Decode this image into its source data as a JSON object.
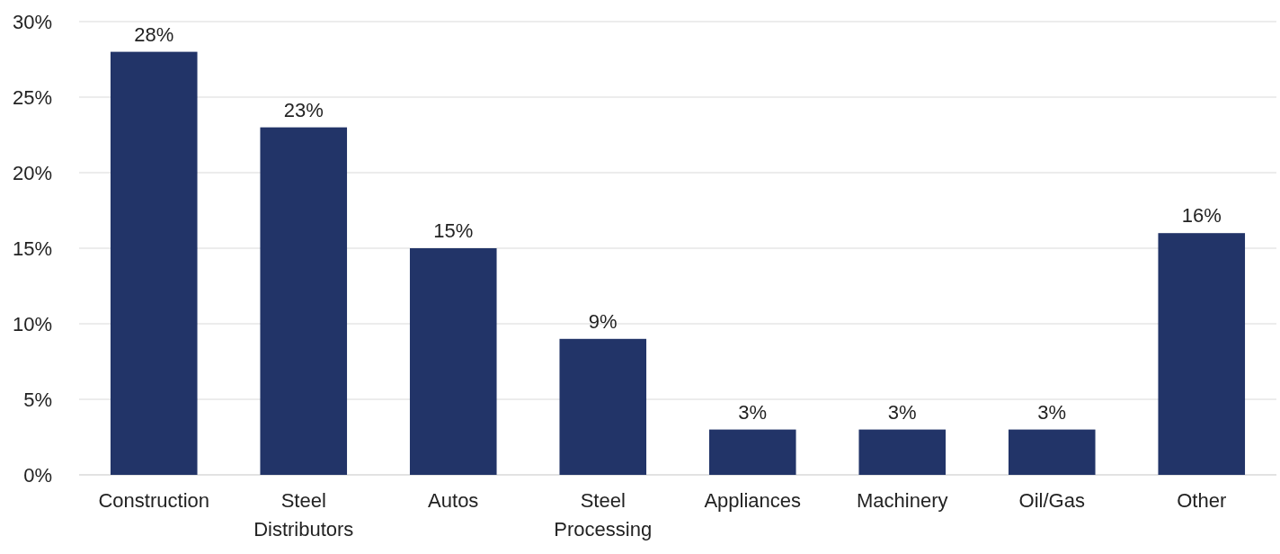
{
  "chart_data": {
    "type": "bar",
    "categories": [
      "Construction",
      "Steel Distributors",
      "Autos",
      "Steel Processing",
      "Appliances",
      "Machinery",
      "Oil/Gas",
      "Other"
    ],
    "values": [
      28,
      23,
      15,
      9,
      3,
      3,
      3,
      16
    ],
    "value_labels": [
      "28%",
      "23%",
      "15%",
      "9%",
      "3%",
      "3%",
      "3%",
      "16%"
    ],
    "color": "#223468",
    "ylim": [
      0,
      30
    ],
    "yticks": [
      {
        "value": 0,
        "label": "0%"
      },
      {
        "value": 5,
        "label": "5%"
      },
      {
        "value": 10,
        "label": "10%"
      },
      {
        "value": 15,
        "label": "15%"
      },
      {
        "value": 20,
        "label": "20%"
      },
      {
        "value": 25,
        "label": "25%"
      },
      {
        "value": 30,
        "label": "30%"
      }
    ],
    "grid": "y"
  }
}
